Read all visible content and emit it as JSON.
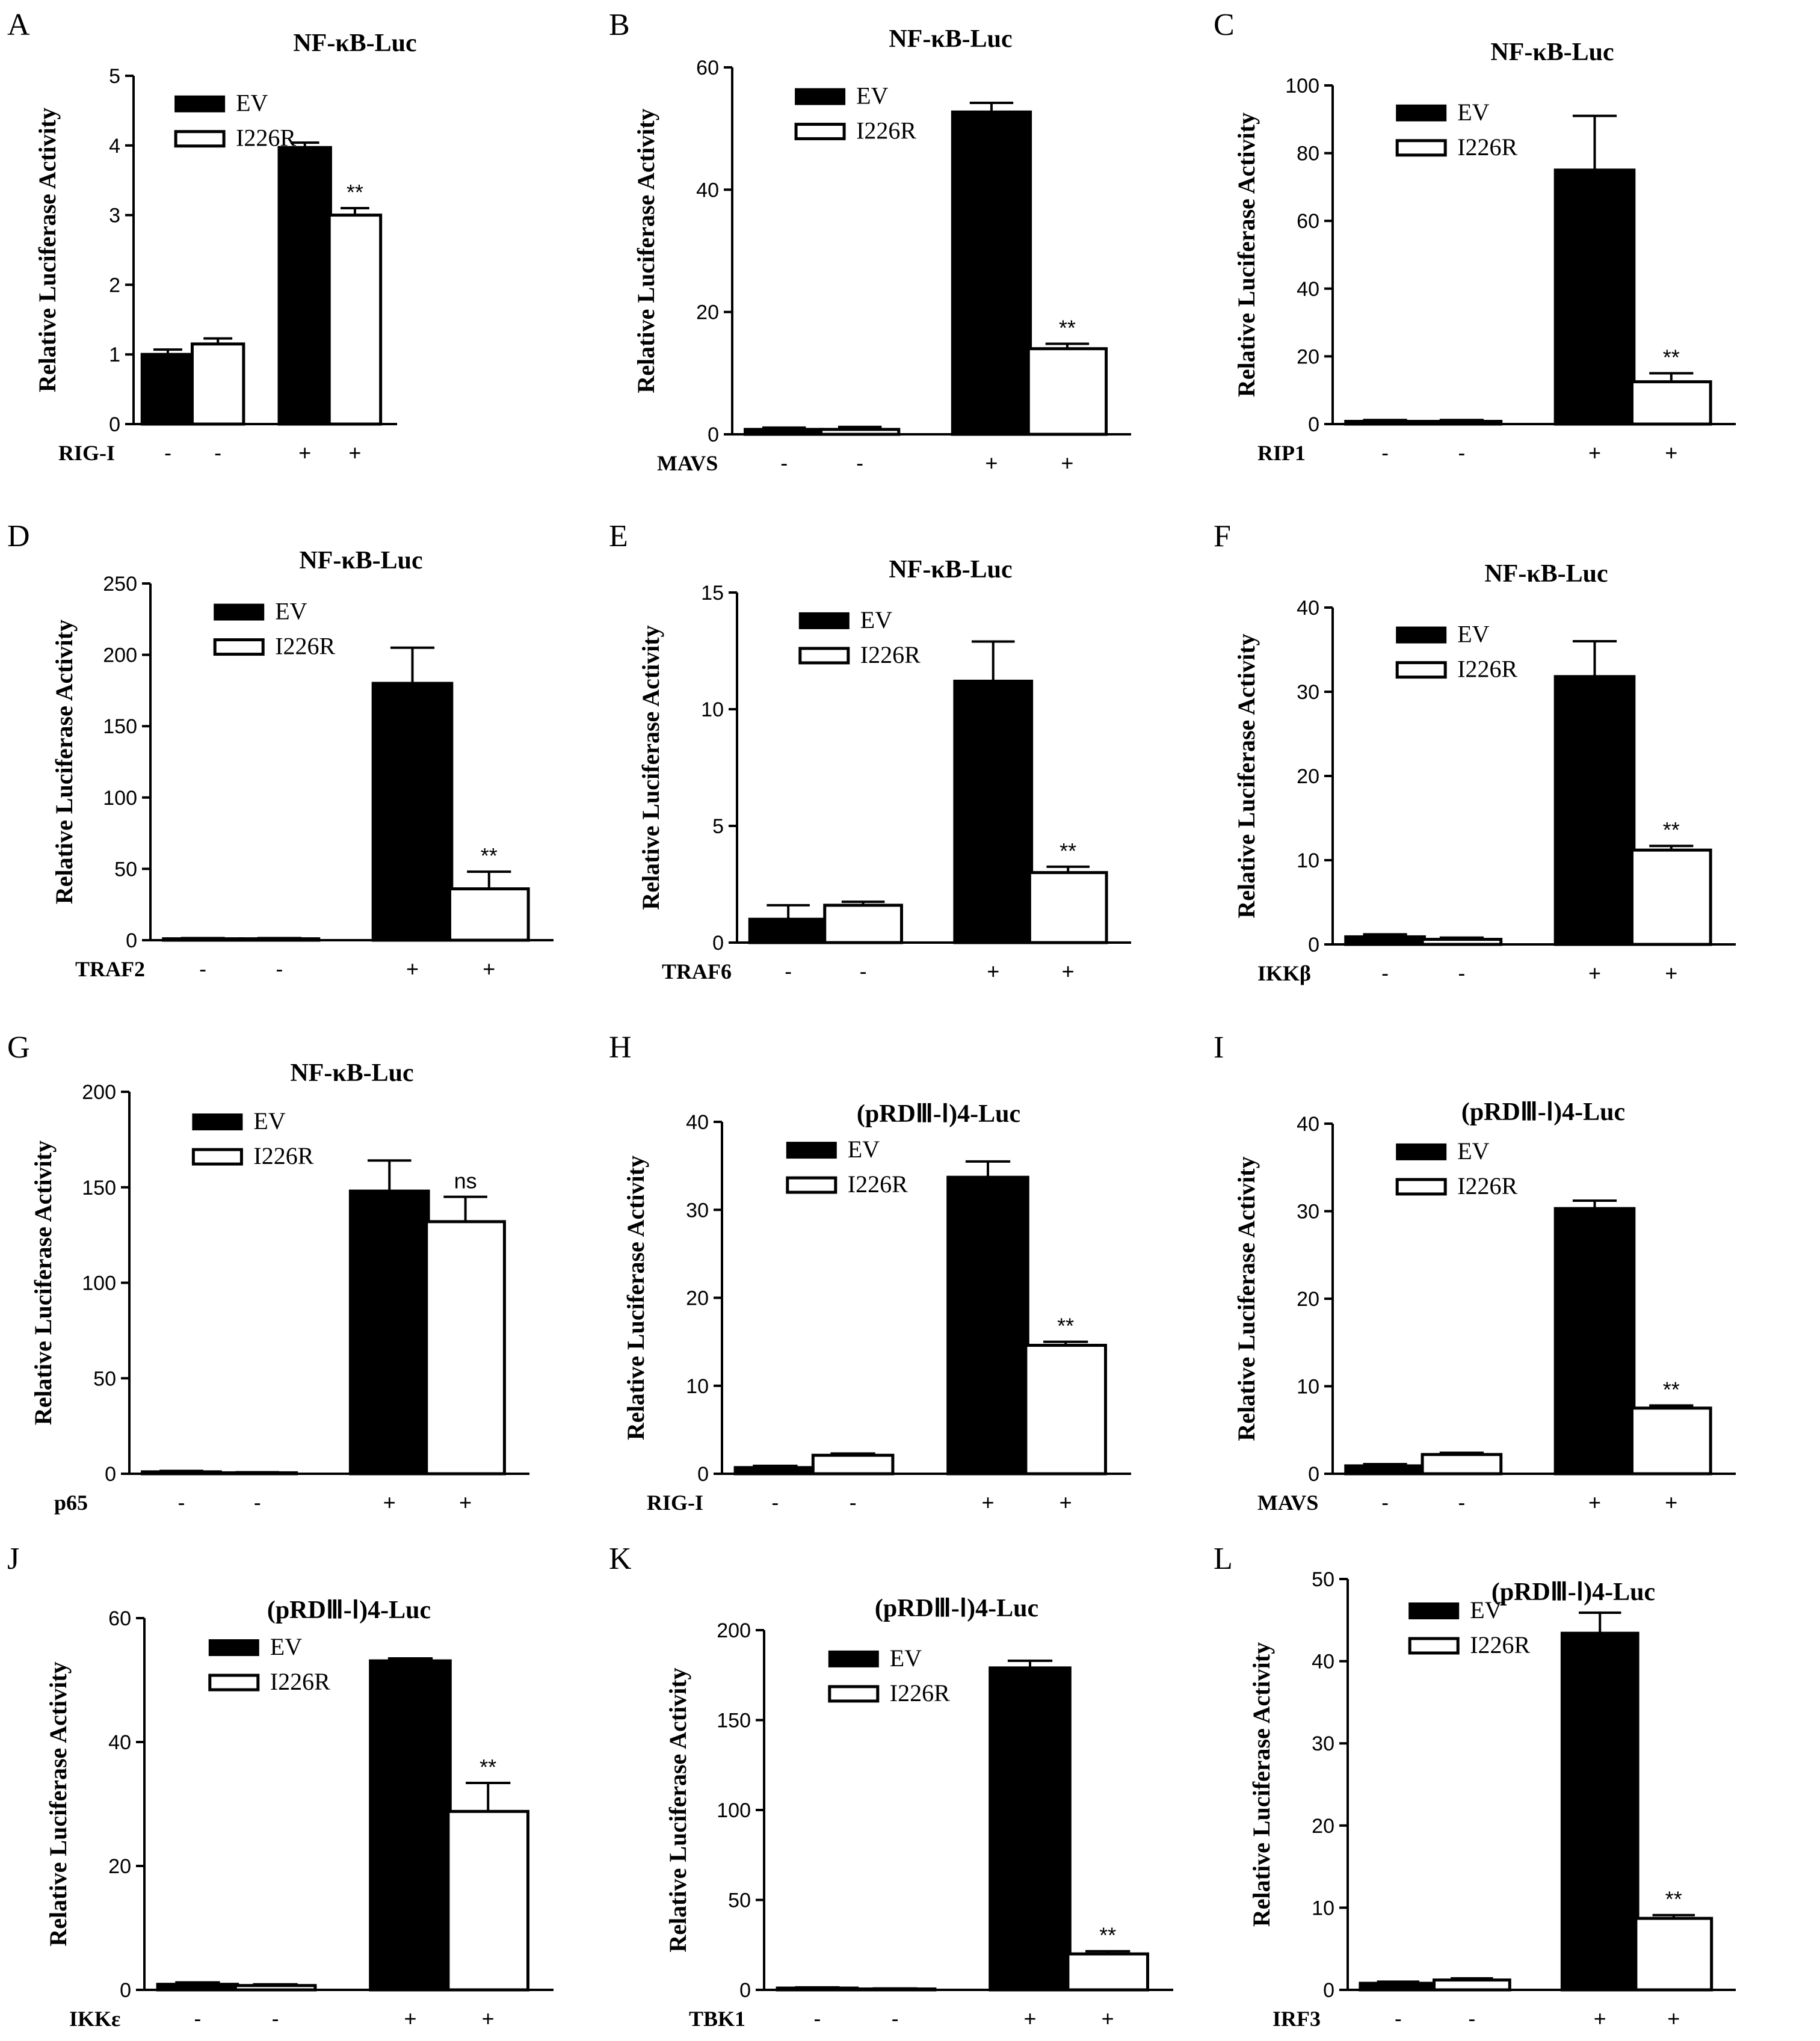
{
  "chart_data": [
    {
      "panel": "A",
      "type": "bar",
      "title": "NF-κB-Luc",
      "ylabel": "Relative Luciferase Activity",
      "ylim": [
        0,
        5
      ],
      "yticks": [
        0,
        1,
        2,
        3,
        4,
        5
      ],
      "condition": "RIG-I",
      "signs": [
        "-",
        "-",
        "+",
        "+"
      ],
      "series": [
        {
          "name": "EV",
          "values": [
            1.0,
            3.97
          ],
          "errors": [
            0.07,
            0.07
          ]
        },
        {
          "name": "I226R",
          "values": [
            1.15,
            3.0
          ],
          "errors": [
            0.08,
            0.1
          ]
        }
      ],
      "annotation": "**",
      "legend": "top-left"
    },
    {
      "panel": "B",
      "type": "bar",
      "title": "NF-κB-Luc",
      "ylabel": "Relative Luciferase Activity",
      "ylim": [
        0,
        60
      ],
      "yticks": [
        0,
        20,
        40,
        60
      ],
      "condition": "MAVS",
      "signs": [
        "-",
        "-",
        "+",
        "+"
      ],
      "series": [
        {
          "name": "EV",
          "values": [
            0.8,
            52.7
          ],
          "errors": [
            0.3,
            1.5
          ]
        },
        {
          "name": "I226R",
          "values": [
            0.8,
            14.0
          ],
          "errors": [
            0.4,
            0.8
          ]
        }
      ],
      "annotation": "**",
      "legend": "top-left"
    },
    {
      "panel": "C",
      "type": "bar",
      "title": "NF-κB-Luc",
      "ylabel": "Relative Luciferase Activity",
      "ylim": [
        0,
        100
      ],
      "yticks": [
        0,
        20,
        40,
        60,
        80,
        100
      ],
      "condition": "RIP1",
      "signs": [
        "-",
        "-",
        "+",
        "+"
      ],
      "series": [
        {
          "name": "EV",
          "values": [
            0.8,
            75
          ],
          "errors": [
            0.4,
            16
          ]
        },
        {
          "name": "I226R",
          "values": [
            0.8,
            12.5
          ],
          "errors": [
            0.4,
            2.5
          ]
        }
      ],
      "annotation": "**",
      "legend": "top-left"
    },
    {
      "panel": "D",
      "type": "bar",
      "title": "NF-κB-Luc",
      "ylabel": "Relative Luciferase Activity",
      "ylim": [
        0,
        250
      ],
      "yticks": [
        0,
        50,
        100,
        150,
        200,
        250
      ],
      "condition": "TRAF2",
      "signs": [
        "-",
        "-",
        "+",
        "+"
      ],
      "series": [
        {
          "name": "EV",
          "values": [
            1,
            180
          ],
          "errors": [
            0.5,
            25
          ]
        },
        {
          "name": "I226R",
          "values": [
            1,
            36
          ],
          "errors": [
            0.5,
            12
          ]
        }
      ],
      "annotation": "**",
      "legend": "top-left"
    },
    {
      "panel": "E",
      "type": "bar",
      "title": "NF-κB-Luc",
      "ylabel": "Relative Luciferase Activity",
      "ylim": [
        0,
        15
      ],
      "yticks": [
        0,
        5,
        10,
        15
      ],
      "condition": "TRAF6",
      "signs": [
        "-",
        "-",
        "+",
        "+"
      ],
      "series": [
        {
          "name": "EV",
          "values": [
            1.0,
            11.2
          ],
          "errors": [
            0.6,
            1.7
          ]
        },
        {
          "name": "I226R",
          "values": [
            1.6,
            3.0
          ],
          "errors": [
            0.15,
            0.25
          ]
        }
      ],
      "annotation": "**",
      "legend": "top-left"
    },
    {
      "panel": "F",
      "type": "bar",
      "title": "NF-κB-Luc",
      "ylabel": "Relative Luciferase Activity",
      "ylim": [
        0,
        40
      ],
      "yticks": [
        0,
        10,
        20,
        30,
        40
      ],
      "condition": "IKKβ",
      "signs": [
        "-",
        "-",
        "+",
        "+"
      ],
      "series": [
        {
          "name": "EV",
          "values": [
            0.9,
            31.8
          ],
          "errors": [
            0.3,
            4.2
          ]
        },
        {
          "name": "I226R",
          "values": [
            0.6,
            11.2
          ],
          "errors": [
            0.2,
            0.5
          ]
        }
      ],
      "annotation": "**",
      "legend": "top-left"
    },
    {
      "panel": "G",
      "type": "bar",
      "title": "NF-κB-Luc",
      "ylabel": "Relative Luciferase Activity",
      "ylim": [
        0,
        200
      ],
      "yticks": [
        0,
        50,
        100,
        150,
        200
      ],
      "condition": "p65",
      "signs": [
        "-",
        "-",
        "+",
        "+"
      ],
      "series": [
        {
          "name": "EV",
          "values": [
            1,
            148
          ],
          "errors": [
            0.5,
            16
          ]
        },
        {
          "name": "I226R",
          "values": [
            0.5,
            132
          ],
          "errors": [
            0.3,
            13
          ]
        }
      ],
      "annotation": "ns",
      "legend": "top-left"
    },
    {
      "panel": "H",
      "type": "bar",
      "title": "(pRDⅢ-Ⅰ)4-Luc",
      "ylabel": "Relative Luciferase Activity",
      "ylim": [
        0,
        40
      ],
      "yticks": [
        0,
        10,
        20,
        30,
        40
      ],
      "condition": "RIG-I",
      "signs": [
        "-",
        "-",
        "+",
        "+"
      ],
      "series": [
        {
          "name": "EV",
          "values": [
            0.7,
            33.7
          ],
          "errors": [
            0.2,
            1.8
          ]
        },
        {
          "name": "I226R",
          "values": [
            2.1,
            14.6
          ],
          "errors": [
            0.2,
            0.4
          ]
        }
      ],
      "annotation": "**",
      "legend": "top-left"
    },
    {
      "panel": "I",
      "type": "bar",
      "title": "(pRDⅢ-Ⅰ)4-Luc",
      "ylabel": "Relative Luciferase Activity",
      "ylim": [
        0,
        40
      ],
      "yticks": [
        0,
        10,
        20,
        30,
        40
      ],
      "condition": "MAVS",
      "signs": [
        "-",
        "-",
        "+",
        "+"
      ],
      "series": [
        {
          "name": "EV",
          "values": [
            0.9,
            30.3
          ],
          "errors": [
            0.2,
            0.9
          ]
        },
        {
          "name": "I226R",
          "values": [
            2.2,
            7.5
          ],
          "errors": [
            0.2,
            0.3
          ]
        }
      ],
      "annotation": "**",
      "legend": "top-left"
    },
    {
      "panel": "J",
      "type": "bar",
      "title": "(pRDⅢ-Ⅰ)4-Luc",
      "ylabel": "Relative Luciferase Activity",
      "ylim": [
        0,
        60
      ],
      "yticks": [
        0,
        20,
        40,
        60
      ],
      "condition": "IKKε",
      "signs": [
        "-",
        "-",
        "+",
        "+"
      ],
      "series": [
        {
          "name": "EV",
          "values": [
            0.9,
            53.1
          ],
          "errors": [
            0.3,
            0.4
          ]
        },
        {
          "name": "I226R",
          "values": [
            0.7,
            28.8
          ],
          "errors": [
            0.2,
            4.6
          ]
        }
      ],
      "annotation": "**",
      "legend": "top-left"
    },
    {
      "panel": "K",
      "type": "bar",
      "title": "(pRDⅢ-Ⅰ)4-Luc",
      "ylabel": "Relative Luciferase Activity",
      "ylim": [
        0,
        200
      ],
      "yticks": [
        0,
        50,
        100,
        150,
        200
      ],
      "condition": "TBK1",
      "signs": [
        "-",
        "-",
        "+",
        "+"
      ],
      "series": [
        {
          "name": "EV",
          "values": [
            1,
            179
          ],
          "errors": [
            0.4,
            4
          ]
        },
        {
          "name": "I226R",
          "values": [
            0.5,
            20
          ],
          "errors": [
            0.3,
            1.5
          ]
        }
      ],
      "annotation": "**",
      "legend": "top-left"
    },
    {
      "panel": "L",
      "type": "bar",
      "title": "(pRDⅢ-Ⅰ)4-Luc",
      "ylabel": "Relative Luciferase Activity",
      "ylim": [
        0,
        50
      ],
      "yticks": [
        0,
        10,
        20,
        30,
        40,
        50
      ],
      "condition": "IRF3",
      "signs": [
        "-",
        "-",
        "+",
        "+"
      ],
      "series": [
        {
          "name": "EV",
          "values": [
            0.8,
            43.4
          ],
          "errors": [
            0.2,
            2.5
          ]
        },
        {
          "name": "I226R",
          "values": [
            1.2,
            8.7
          ],
          "errors": [
            0.2,
            0.4
          ]
        }
      ],
      "annotation": "**",
      "legend": "top-left"
    }
  ],
  "legend_labels": {
    "ev": "EV",
    "i226r": "I226R"
  },
  "colors": {
    "ev_fill": "#000000",
    "i226r_fill": "#ffffff",
    "stroke": "#000000"
  }
}
